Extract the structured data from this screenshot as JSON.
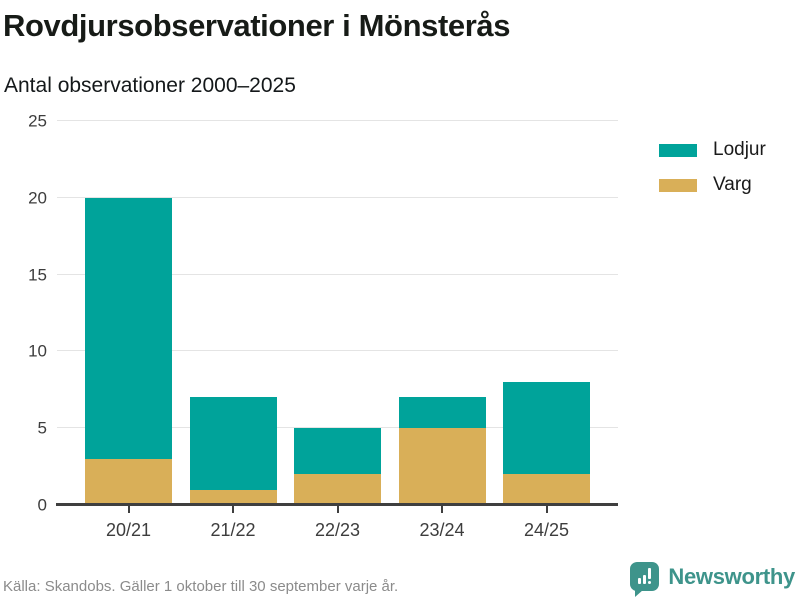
{
  "header": {
    "title": "Rovdjursobservationer i Mönsterås",
    "subtitle": "Antal observationer 2000–2025"
  },
  "chart_data": {
    "type": "bar",
    "stacked": true,
    "title": "Rovdjursobservationer i Mönsterås",
    "subtitle": "Antal observationer 2000–2025",
    "categories": [
      "20/21",
      "21/22",
      "22/23",
      "23/24",
      "24/25"
    ],
    "series": [
      {
        "name": "Lodjur",
        "color": "#00a39a",
        "values": [
          17,
          6,
          3,
          2,
          6
        ]
      },
      {
        "name": "Varg",
        "color": "#d9af58",
        "values": [
          3,
          1,
          2,
          5,
          2
        ]
      }
    ],
    "totals": [
      20,
      7,
      5,
      7,
      8
    ],
    "xlabel": "",
    "ylabel": "",
    "ylim": [
      0,
      25
    ],
    "yticks": [
      0,
      5,
      10,
      15,
      20,
      25
    ],
    "grid": true,
    "legend_position": "right",
    "grid_color": "#e4e4e4",
    "axis_color": "#3f3f3f"
  },
  "footer": {
    "source": "Källa: Skandobs. Gäller 1 oktober till 30 september varje år.",
    "brand_name": "Newsworthy",
    "brand_color": "#3e948b",
    "brand_logo_icon": "bar-chart-speech-bubble-icon"
  }
}
